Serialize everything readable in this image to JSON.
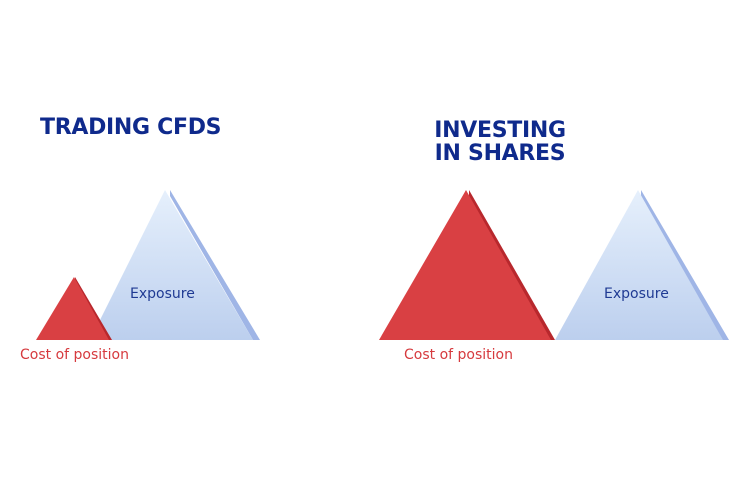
{
  "colors": {
    "title": "#0f2a8c",
    "cost_fill": "#d94043",
    "cost_edge": "#b8282d",
    "exposure_fill_top": "#e3eefb",
    "exposure_fill_bottom": "#bcd0ee",
    "exposure_edge": "#9fb5e6",
    "exposure_text": "#1f3a93",
    "cost_text": "#d63a3e"
  },
  "panels": [
    {
      "id": "cfds",
      "title_lines": [
        "TRADING CFDS"
      ],
      "exposure_label": "Exposure",
      "cost_label": "Cost of position"
    },
    {
      "id": "shares",
      "title_lines": [
        "INVESTING",
        "IN SHARES"
      ],
      "exposure_label": "Exposure",
      "cost_label": "Cost of position"
    }
  ]
}
